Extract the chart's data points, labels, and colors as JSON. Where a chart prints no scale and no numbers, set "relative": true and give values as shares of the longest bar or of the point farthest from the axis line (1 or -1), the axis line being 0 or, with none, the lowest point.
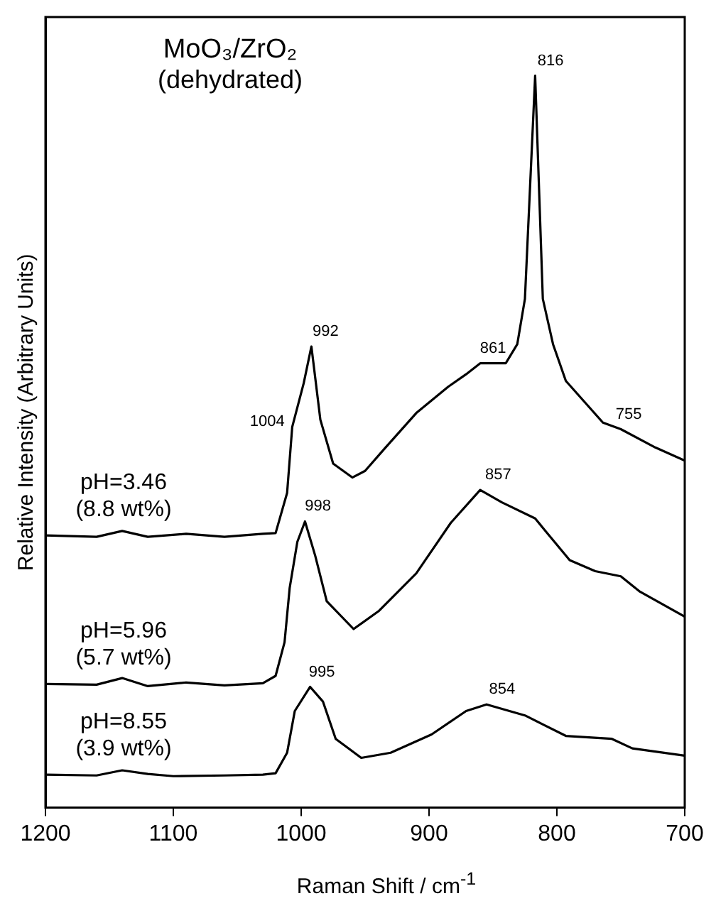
{
  "chart_data": {
    "type": "line",
    "title": "MoO₃/ZrO₂",
    "subtitle": "(dehydrated)",
    "xlabel": "Raman Shift / cm$^{-1}$",
    "ylabel": "Relative Intensity (Arbitrary Units)",
    "relative": true,
    "xlim": [
      1200,
      700
    ],
    "xticks": [
      1200,
      1100,
      1000,
      900,
      800,
      700
    ],
    "grid": false,
    "legend": false,
    "marker": "none",
    "line_style": "solid",
    "series": [
      {
        "name": "pH=3.46 (8.8 wt%)",
        "color": "#000000",
        "x": [
          1200,
          1160,
          1140,
          1120,
          1090,
          1060,
          1030,
          1020,
          1011,
          1007,
          998,
          992,
          985,
          975,
          960,
          950,
          935,
          910,
          885,
          871,
          860,
          840,
          831,
          825,
          817,
          811,
          803,
          793,
          764,
          750,
          723,
          700
        ],
        "values": [
          0.372,
          0.37,
          0.378,
          0.37,
          0.374,
          0.37,
          0.374,
          0.375,
          0.43,
          0.52,
          0.58,
          0.63,
          0.53,
          0.47,
          0.451,
          0.46,
          0.49,
          0.539,
          0.575,
          0.592,
          0.607,
          0.607,
          0.633,
          0.695,
          1.0,
          0.695,
          0.633,
          0.583,
          0.526,
          0.517,
          0.492,
          0.474
        ]
      },
      {
        "name": "pH=5.96 (5.7 wt%)",
        "color": "#000000",
        "x": [
          1200,
          1160,
          1140,
          1120,
          1090,
          1060,
          1030,
          1020,
          1013,
          1009,
          1003,
          997,
          989,
          980,
          959,
          939,
          910,
          883,
          860,
          843,
          817,
          808,
          790,
          770,
          750,
          735,
          700
        ],
        "values": [
          0.169,
          0.168,
          0.177,
          0.166,
          0.171,
          0.167,
          0.17,
          0.18,
          0.226,
          0.3,
          0.363,
          0.391,
          0.344,
          0.282,
          0.244,
          0.269,
          0.32,
          0.389,
          0.434,
          0.417,
          0.395,
          0.376,
          0.338,
          0.323,
          0.316,
          0.295,
          0.261
        ]
      },
      {
        "name": "pH=8.55 (3.9 wt%)",
        "color": "#000000",
        "x": [
          1200,
          1160,
          1140,
          1120,
          1100,
          1060,
          1030,
          1020,
          1011,
          1005,
          993,
          983,
          973,
          953,
          930,
          898,
          871,
          855,
          825,
          793,
          757,
          741,
          700
        ],
        "values": [
          0.045,
          0.044,
          0.051,
          0.046,
          0.043,
          0.044,
          0.045,
          0.047,
          0.075,
          0.132,
          0.165,
          0.145,
          0.094,
          0.068,
          0.075,
          0.1,
          0.132,
          0.141,
          0.126,
          0.098,
          0.094,
          0.081,
          0.071
        ]
      }
    ],
    "annotations": [
      {
        "text": "816",
        "x": 816,
        "y": 1.0
      },
      {
        "text": "992",
        "x": 992,
        "y": 0.63
      },
      {
        "text": "1004",
        "x": 1004,
        "y": 0.52
      },
      {
        "text": "861",
        "x": 861,
        "y": 0.607
      },
      {
        "text": "755",
        "x": 755,
        "y": 0.517
      },
      {
        "text": "998",
        "x": 998,
        "y": 0.391
      },
      {
        "text": "857",
        "x": 857,
        "y": 0.434
      },
      {
        "text": "995",
        "x": 995,
        "y": 0.165
      },
      {
        "text": "854",
        "x": 854,
        "y": 0.141
      }
    ]
  }
}
